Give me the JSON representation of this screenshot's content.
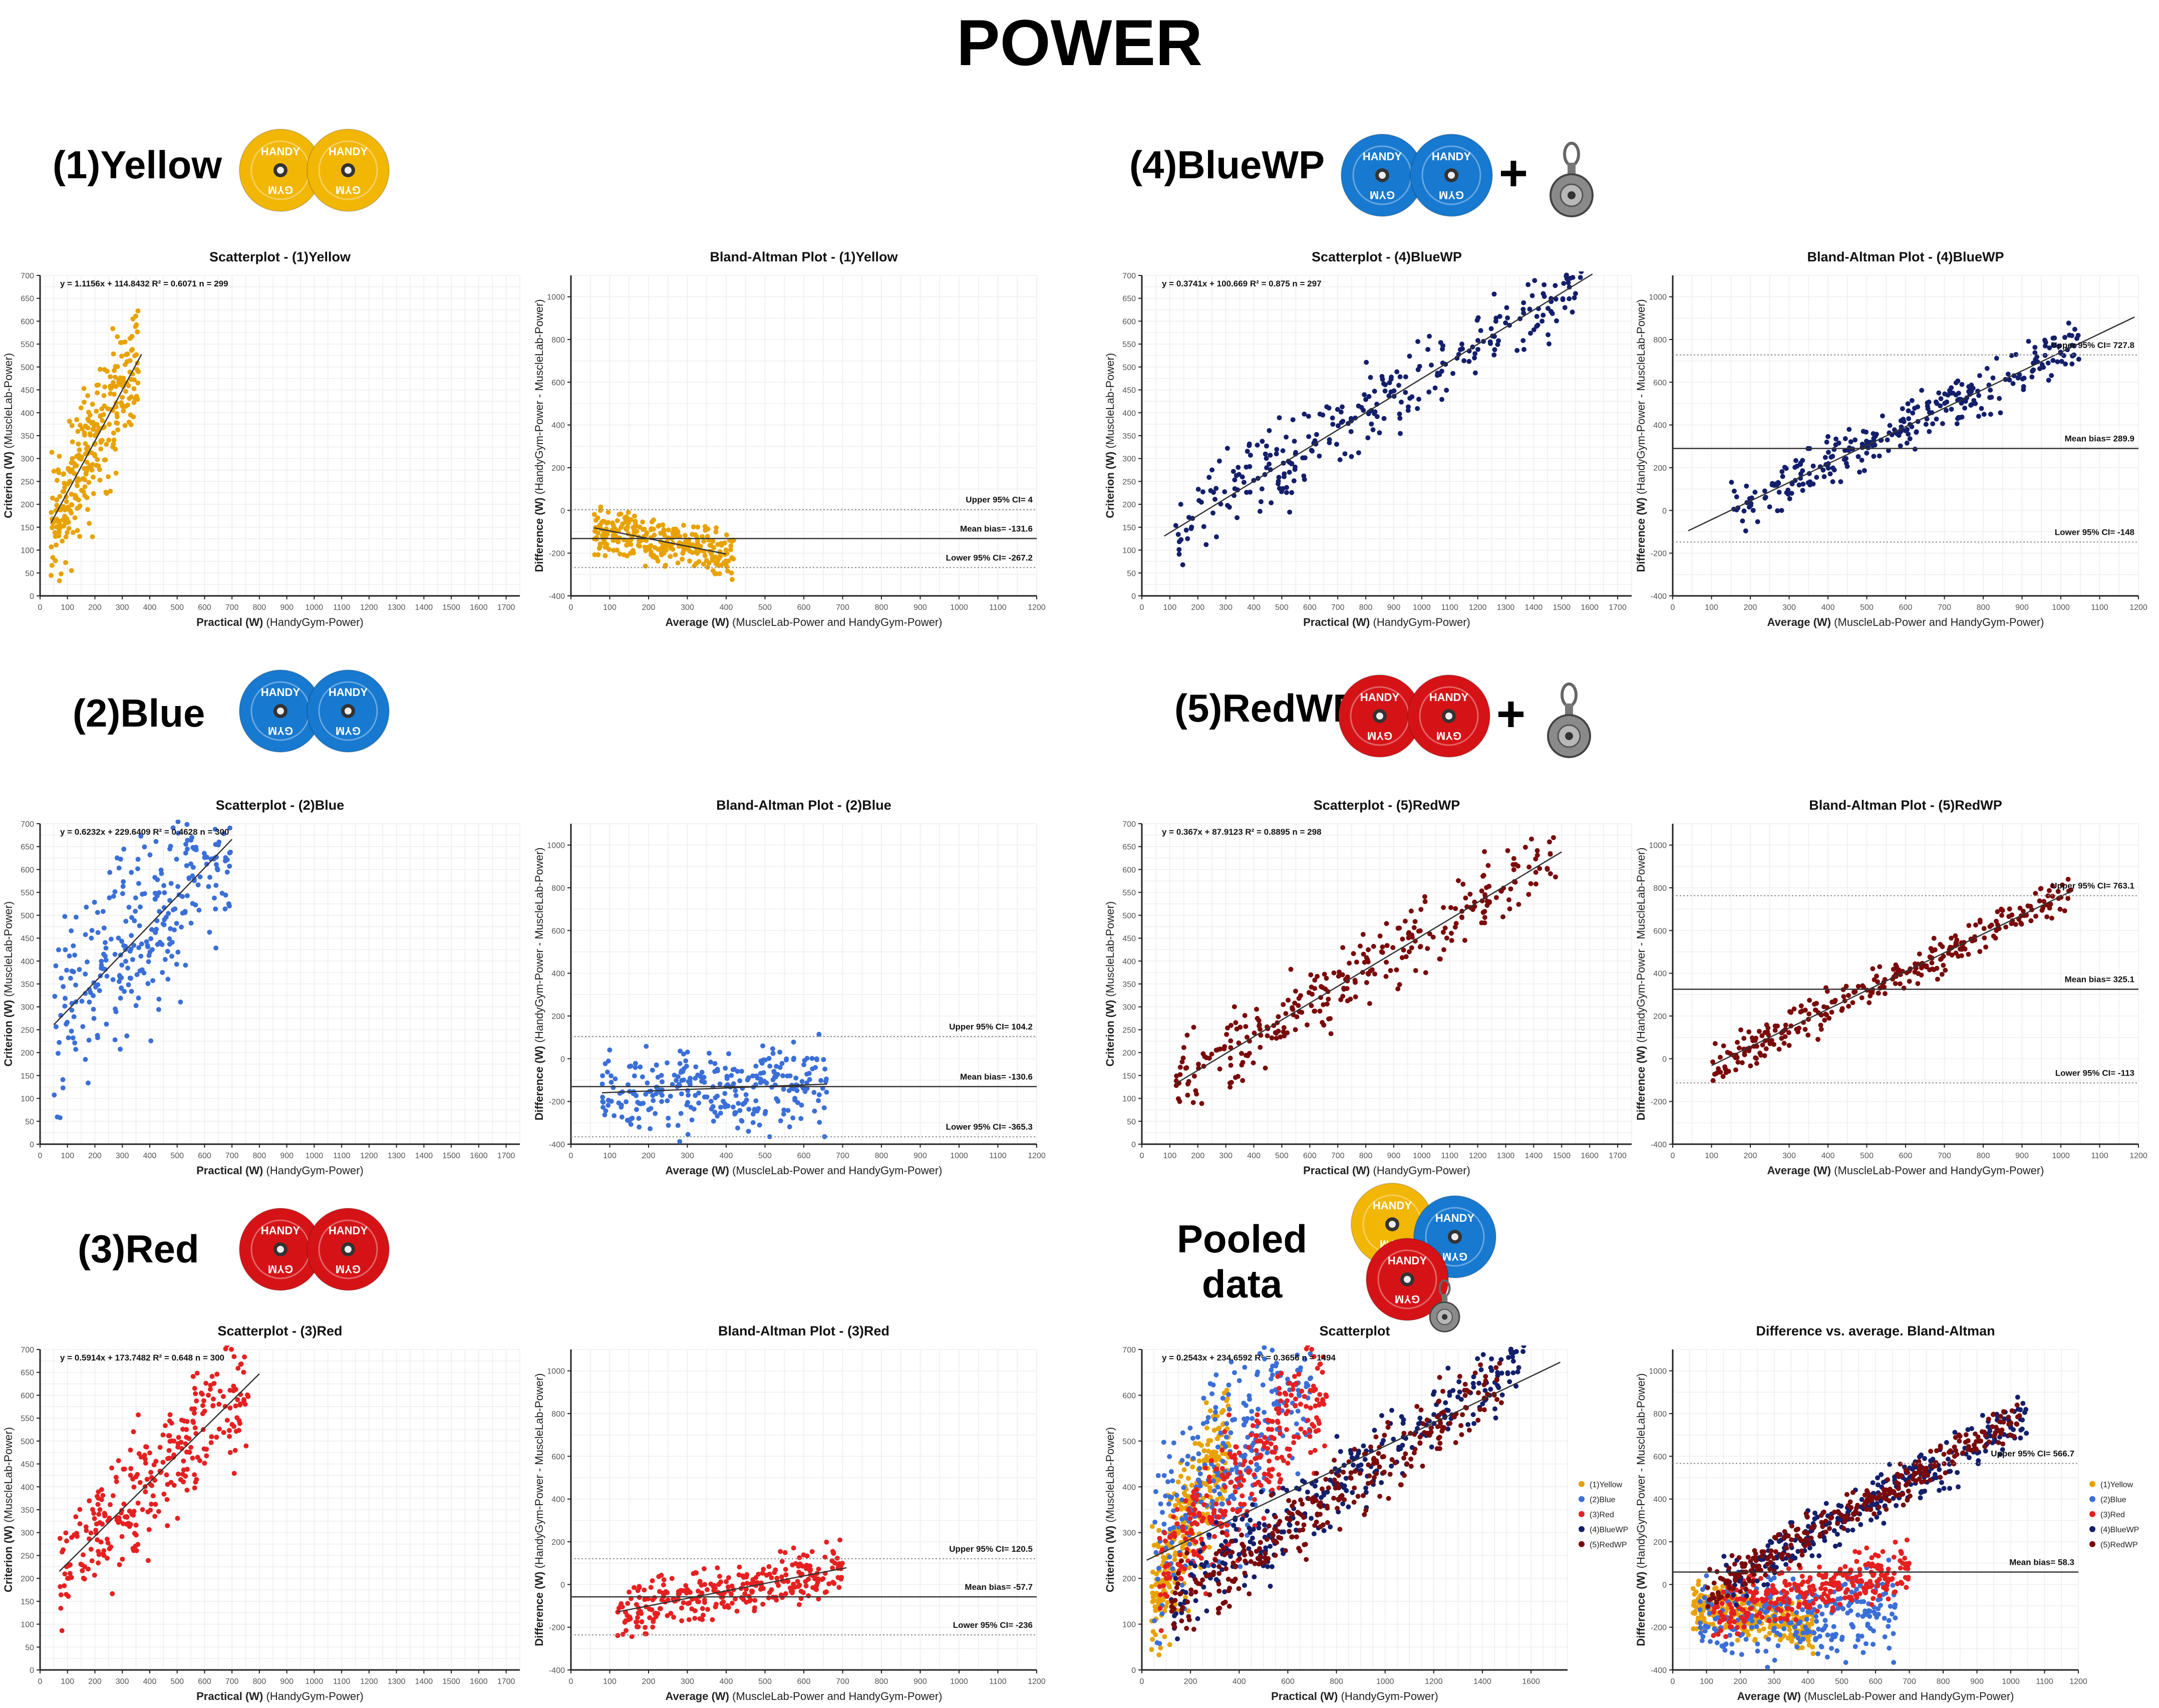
{
  "page_title": "POWER",
  "labels": {
    "yellow": "(1)Yellow",
    "bluewp": "(4)BlueWP",
    "blue": "(2)Blue",
    "redwp": "(5)RedWP",
    "red": "(3)Red",
    "pooled_line1": "Pooled",
    "pooled_line2": "data",
    "plus": "+"
  },
  "plates": {
    "text_top": "HANDY",
    "text_bottom": "GYM"
  },
  "colors": {
    "yellow": "#E8A200",
    "blue": "#3B6FD8",
    "red": "#E62020",
    "bluewp": "#131F6B",
    "redwp": "#7A0A0A",
    "plate_yellow": "#F2B705",
    "plate_blue": "#1779CF",
    "plate_red": "#D51317"
  },
  "chart_data": [
    {
      "id": "scatter-yellow",
      "type": "scatter",
      "title": "Scatterplot - (1)Yellow",
      "xlabel_bold": "Practical (W)",
      "xlabel_rest": " (HandyGym-Power)",
      "ylabel_bold": "Criterion (W)",
      "ylabel_rest": " (MuscleLab-Power)",
      "xlim": [
        0,
        1750
      ],
      "ylim": [
        0,
        700
      ],
      "xticks_step": 100,
      "yticks_step": 50,
      "color_key": "yellow",
      "annotation": "y = 1.1156x + 114.8432    R² = 0.6071    n = 299",
      "fit": {
        "slope": 1.1156,
        "intercept": 114.8432,
        "x_range": [
          40,
          370
        ]
      },
      "sim": {
        "n": 299,
        "x_min": 40,
        "x_max": 360,
        "slope": 1.1156,
        "intercept": 114.8432,
        "noise": 70,
        "seed": 11
      }
    },
    {
      "id": "ba-yellow",
      "type": "scatter",
      "title": "Bland-Altman Plot - (1)Yellow",
      "xlabel_bold": "Average (W)",
      "xlabel_rest": " (MuscleLab-Power and HandyGym-Power)",
      "ylabel_bold": "Difference (W)",
      "ylabel_rest": " (HandyGym-Power - MuscleLab-Power)",
      "xlim": [
        0,
        1200
      ],
      "ylim": [
        -400,
        1100
      ],
      "xticks_step": 100,
      "yticks_step": 200,
      "color_key": "yellow",
      "mean_bias": -131.6,
      "upper_ci": 4,
      "lower_ci": -267.2,
      "mean_label": "Mean bias= -131.6",
      "upper_label": "Upper 95% CI= 4",
      "lower_label": "Lower 95% CI= -267.2",
      "fit": {
        "slope": -0.36,
        "intercept": -60,
        "x_range": [
          60,
          400
        ]
      },
      "sim": {
        "n": 299,
        "x_min": 60,
        "x_max": 420,
        "slope": -0.36,
        "intercept": -60,
        "noise": 55,
        "seed": 12
      }
    },
    {
      "id": "scatter-bluewp",
      "type": "scatter",
      "title": "Scatterplot - (4)BlueWP",
      "xlabel_bold": "Practical (W)",
      "xlabel_rest": " (HandyGym-Power)",
      "ylabel_bold": "Criterion (W)",
      "ylabel_rest": " (MuscleLab-Power)",
      "xlim": [
        0,
        1750
      ],
      "ylim": [
        0,
        700
      ],
      "xticks_step": 100,
      "yticks_step": 50,
      "color_key": "bluewp",
      "annotation": "y = 0.3741x + 100.669    R² = 0.875    n = 297",
      "fit": {
        "slope": 0.3741,
        "intercept": 100.669,
        "x_range": [
          80,
          1610
        ]
      },
      "sim": {
        "n": 297,
        "x_min": 120,
        "x_max": 1580,
        "slope": 0.3741,
        "intercept": 100.669,
        "noise": 42,
        "seed": 41
      }
    },
    {
      "id": "ba-bluewp",
      "type": "scatter",
      "title": "Bland-Altman Plot - (4)BlueWP",
      "xlabel_bold": "Average (W)",
      "xlabel_rest": " (MuscleLab-Power and HandyGym-Power)",
      "ylabel_bold": "Difference (W)",
      "ylabel_rest": " (HandyGym-Power - MuscleLab-Power)",
      "xlim": [
        0,
        1200
      ],
      "ylim": [
        -400,
        1100
      ],
      "xticks_step": 100,
      "yticks_step": 200,
      "color_key": "bluewp",
      "mean_bias": 289.9,
      "upper_ci": 727.8,
      "lower_ci": -148,
      "mean_label": "Mean bias= 289.9",
      "upper_label": "Upper 95% CI= 727.8",
      "lower_label": "Lower 95% CI= -148",
      "fit": {
        "slope": 0.87,
        "intercept": -130,
        "x_range": [
          40,
          1190
        ]
      },
      "sim": {
        "n": 297,
        "x_min": 150,
        "x_max": 1050,
        "slope": 0.87,
        "intercept": -130,
        "noise": 55,
        "seed": 42
      }
    },
    {
      "id": "scatter-blue",
      "type": "scatter",
      "title": "Scatterplot - (2)Blue",
      "xlabel_bold": "Practical (W)",
      "xlabel_rest": " (HandyGym-Power)",
      "ylabel_bold": "Criterion (W)",
      "ylabel_rest": " (MuscleLab-Power)",
      "xlim": [
        0,
        1750
      ],
      "ylim": [
        0,
        700
      ],
      "xticks_step": 100,
      "yticks_step": 50,
      "color_key": "blue",
      "annotation": "y = 0.6232x + 229.6409    R² = 0.4628    n = 300",
      "fit": {
        "slope": 0.6232,
        "intercept": 229.6409,
        "x_range": [
          50,
          700
        ]
      },
      "sim": {
        "n": 300,
        "x_min": 50,
        "x_max": 700,
        "slope": 0.6232,
        "intercept": 229.6409,
        "noise": 95,
        "seed": 21
      }
    },
    {
      "id": "ba-blue",
      "type": "scatter",
      "title": "Bland-Altman Plot - (2)Blue",
      "xlabel_bold": "Average (W)",
      "xlabel_rest": " (MuscleLab-Power and HandyGym-Power)",
      "ylabel_bold": "Difference (W)",
      "ylabel_rest": " (HandyGym-Power - MuscleLab-Power)",
      "xlim": [
        0,
        1200
      ],
      "ylim": [
        -400,
        1100
      ],
      "xticks_step": 100,
      "yticks_step": 200,
      "color_key": "blue",
      "mean_bias": -130.6,
      "upper_ci": 104.2,
      "lower_ci": -365.3,
      "mean_label": "Mean bias= -130.6",
      "upper_label": "Upper 95% CI= 104.2",
      "lower_label": "Lower 95% CI= -365.3",
      "fit": {
        "slope": 0.07,
        "intercept": -165,
        "x_range": [
          80,
          660
        ]
      },
      "sim": {
        "n": 300,
        "x_min": 80,
        "x_max": 660,
        "slope": 0.07,
        "intercept": -165,
        "noise": 95,
        "seed": 22
      }
    },
    {
      "id": "scatter-redwp",
      "type": "scatter",
      "title": "Scatterplot - (5)RedWP",
      "xlabel_bold": "Practical (W)",
      "xlabel_rest": " (HandyGym-Power)",
      "ylabel_bold": "Criterion (W)",
      "ylabel_rest": " (MuscleLab-Power)",
      "xlim": [
        0,
        1750
      ],
      "ylim": [
        0,
        700
      ],
      "xticks_step": 100,
      "yticks_step": 50,
      "color_key": "redwp",
      "annotation": "y = 0.367x + 87.9123    R² = 0.8895    n = 298",
      "fit": {
        "slope": 0.367,
        "intercept": 87.9123,
        "x_range": [
          120,
          1500
        ]
      },
      "sim": {
        "n": 298,
        "x_min": 120,
        "x_max": 1480,
        "slope": 0.367,
        "intercept": 87.9123,
        "noise": 38,
        "seed": 51
      }
    },
    {
      "id": "ba-redwp",
      "type": "scatter",
      "title": "Bland-Altman Plot - (5)RedWP",
      "xlabel_bold": "Average (W)",
      "xlabel_rest": " (MuscleLab-Power and HandyGym-Power)",
      "ylabel_bold": "Difference (W)",
      "ylabel_rest": " (HandyGym-Power - MuscleLab-Power)",
      "xlim": [
        0,
        1200
      ],
      "ylim": [
        -400,
        1100
      ],
      "xticks_step": 100,
      "yticks_step": 200,
      "color_key": "redwp",
      "mean_bias": 325.1,
      "upper_ci": 763.1,
      "lower_ci": -113,
      "mean_label": "Mean bias= 325.1",
      "upper_label": "Upper 95% CI= 763.1",
      "lower_label": "Lower 95% CI= -113",
      "fit": {
        "slope": 0.88,
        "intercept": -120,
        "x_range": [
          100,
          1030
        ]
      },
      "sim": {
        "n": 298,
        "x_min": 100,
        "x_max": 1030,
        "slope": 0.88,
        "intercept": -120,
        "noise": 45,
        "seed": 52
      }
    },
    {
      "id": "scatter-red",
      "type": "scatter",
      "title": "Scatterplot - (3)Red",
      "xlabel_bold": "Practical (W)",
      "xlabel_rest": " (HandyGym-Power)",
      "ylabel_bold": "Criterion (W)",
      "ylabel_rest": " (MuscleLab-Power)",
      "xlim": [
        0,
        1750
      ],
      "ylim": [
        0,
        700
      ],
      "xticks_step": 100,
      "yticks_step": 50,
      "color_key": "red",
      "annotation": "y = 0.5914x + 173.7482    R² = 0.648    n = 300",
      "fit": {
        "slope": 0.5914,
        "intercept": 173.7482,
        "x_range": [
          70,
          800
        ]
      },
      "sim": {
        "n": 300,
        "x_min": 70,
        "x_max": 760,
        "slope": 0.5914,
        "intercept": 173.7482,
        "noise": 70,
        "seed": 31
      }
    },
    {
      "id": "ba-red",
      "type": "scatter",
      "title": "Bland-Altman Plot - (3)Red",
      "xlabel_bold": "Average (W)",
      "xlabel_rest": " (MuscleLab-Power and HandyGym-Power)",
      "ylabel_bold": "Difference (W)",
      "ylabel_rest": " (HandyGym-Power - MuscleLab-Power)",
      "xlim": [
        0,
        1200
      ],
      "ylim": [
        -400,
        1100
      ],
      "xticks_step": 100,
      "yticks_step": 200,
      "color_key": "red",
      "mean_bias": -57.7,
      "upper_ci": 120.5,
      "lower_ci": -236,
      "mean_label": "Mean bias= -57.7",
      "upper_label": "Upper 95% CI= 120.5",
      "lower_label": "Lower 95% CI= -236",
      "fit": {
        "slope": 0.35,
        "intercept": -170,
        "x_range": [
          120,
          710
        ]
      },
      "sim": {
        "n": 300,
        "x_min": 120,
        "x_max": 700,
        "slope": 0.35,
        "intercept": -170,
        "noise": 60,
        "seed": 32
      }
    },
    {
      "id": "scatter-pooled",
      "type": "scatter",
      "title": "Scatterplot",
      "xlabel_bold": "Practical (W)",
      "xlabel_rest": " (HandyGym-Power)",
      "ylabel_bold": "Criterion (W)",
      "ylabel_rest": " (MuscleLab-Power)",
      "xlim": [
        0,
        1750
      ],
      "ylim": [
        0,
        700
      ],
      "xticks_step": 100,
      "yticks_step": 100,
      "xtick_label_step": 200,
      "annotation": "y = 0.2543x + 234.6592    R² = 0.3656    n = 1494",
      "fit": {
        "slope": 0.2543,
        "intercept": 234.6592,
        "x_range": [
          20,
          1720
        ]
      },
      "legend": [
        "(1)Yellow",
        "(2)Blue",
        "(3)Red",
        "(4)BlueWP",
        "(5)RedWP"
      ],
      "legend_colors": [
        "yellow",
        "blue",
        "red",
        "bluewp",
        "redwp"
      ],
      "pooled_from": [
        "scatter-yellow",
        "scatter-blue",
        "scatter-red",
        "scatter-bluewp",
        "scatter-redwp"
      ]
    },
    {
      "id": "ba-pooled",
      "type": "scatter",
      "title": "Difference vs. average. Bland-Altman",
      "xlabel_bold": "Average (W)",
      "xlabel_rest": " (MuscleLab-Power and HandyGym-Power)",
      "ylabel_bold": "Difference (W)",
      "ylabel_rest": " (HandyGym-Power - MuscleLab-Power)",
      "xlim": [
        0,
        1200
      ],
      "ylim": [
        -400,
        1100
      ],
      "xticks_step": 100,
      "yticks_step": 200,
      "mean_bias": 58.3,
      "upper_ci": 566.7,
      "mean_label": "Mean bias= 58.3",
      "upper_label": "Upper 95% CI= 566.7",
      "legend": [
        "(1)Yellow",
        "(2)Blue",
        "(3)Red",
        "(4)BlueWP",
        "(5)RedWP"
      ],
      "legend_colors": [
        "yellow",
        "blue",
        "red",
        "bluewp",
        "redwp"
      ],
      "pooled_from": [
        "ba-yellow",
        "ba-blue",
        "ba-red",
        "ba-bluewp",
        "ba-redwp"
      ]
    }
  ]
}
